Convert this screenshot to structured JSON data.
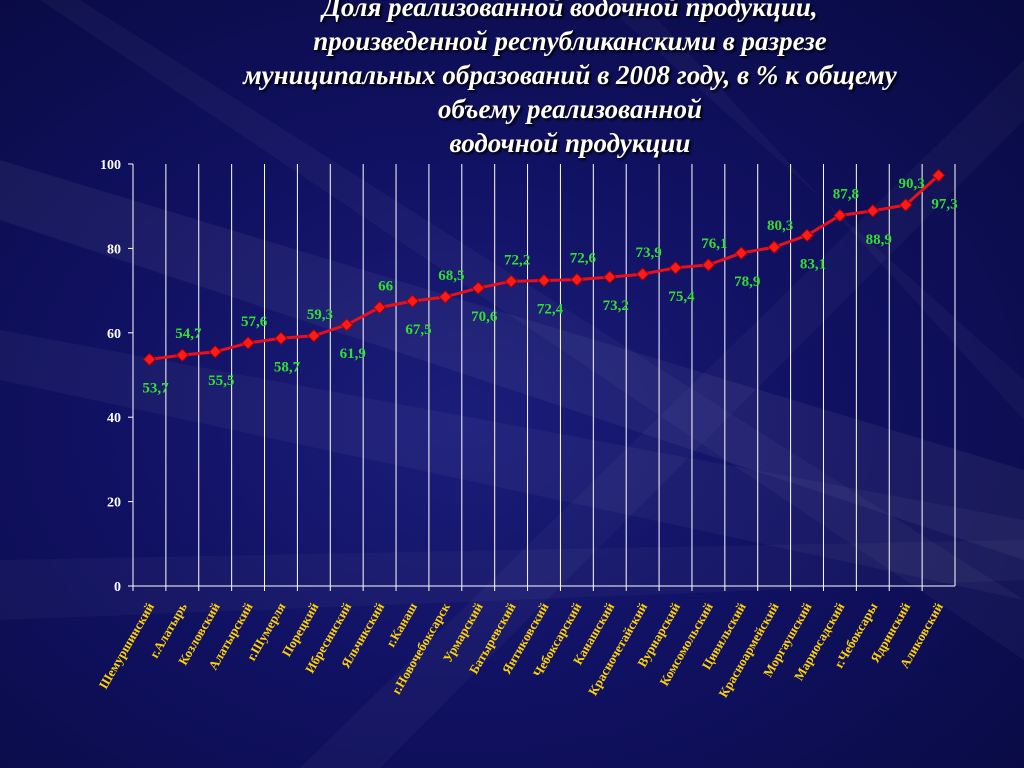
{
  "title_lines": [
    "Доля реализованной водочной продукции,",
    "произведенной республиканскими в разрезе",
    "муниципальных образований в 2008 году, в % к общему",
    "объему реализованной",
    "водочной продукции"
  ],
  "colors": {
    "line": "#e8101a",
    "marker": "#ff1a1a",
    "data_label": "#33dd33",
    "axis_text": "#ffffff",
    "category_label": "#ffd200",
    "grid": "#ffffff"
  },
  "chart_data": {
    "type": "line",
    "title": "Доля реализованной водочной продукции, произведенной республиканскими в разрезе муниципальных образований в 2008 году, в % к общему объему реализованной водочной продукции",
    "xlabel": "",
    "ylabel": "",
    "ylim": [
      0,
      100
    ],
    "yticks": [
      0,
      20,
      40,
      60,
      80,
      100
    ],
    "grid": "vertical",
    "categories": [
      "Шемуршинский",
      "г.Алатырь",
      "Козловский",
      "Алатырский",
      "г.Шумерля",
      "Порецкий",
      "Ибресинский",
      "Яльчикский",
      "г.Канаш",
      "г.Новочебоксарск",
      "Урмарский",
      "Батыревский",
      "Янтиковский",
      "Чебоксарский",
      "Канашский",
      "Красночетайский",
      "Вурнарский",
      "Комсомольский",
      "Цивильский",
      "Красноармейский",
      "Моргаушский",
      "Мариосадский",
      "г.Чебоксары",
      "Ядринский",
      "Аликовский"
    ],
    "values": [
      53.7,
      54.7,
      55.5,
      57.6,
      58.7,
      59.3,
      61.9,
      66,
      67.5,
      68.5,
      70.6,
      72.2,
      72.4,
      72.6,
      73.2,
      73.9,
      75.4,
      76.1,
      78.9,
      80.3,
      83.1,
      87.8,
      88.9,
      90.3,
      97.3
    ],
    "data_labels": [
      "53,7",
      "54,7",
      "55,5",
      "57,6",
      "58,7",
      "59,3",
      "61,9",
      "66",
      "67,5",
      "68,5",
      "70,6",
      "72,2",
      "72,4",
      "72,6",
      "73,2",
      "73,9",
      "75,4",
      "76,1",
      "78,9",
      "80,3",
      "83,1",
      "87,8",
      "88,9",
      "90,3",
      "97,3"
    ]
  }
}
